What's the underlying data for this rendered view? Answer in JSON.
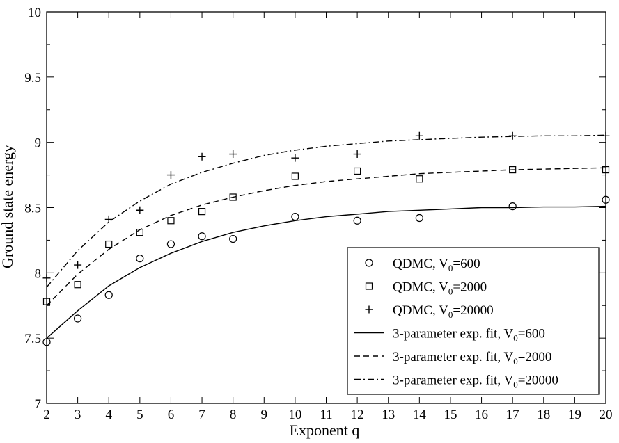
{
  "chart_data": {
    "type": "scatter",
    "title": "",
    "xlabel": "Exponent q",
    "ylabel": "Ground state energy",
    "xlim": [
      2,
      20
    ],
    "ylim": [
      7,
      10
    ],
    "xticks": [
      2,
      3,
      4,
      5,
      6,
      7,
      8,
      9,
      10,
      11,
      12,
      13,
      14,
      15,
      16,
      17,
      18,
      19,
      20
    ],
    "yticks": [
      7,
      7.5,
      8,
      8.5,
      9,
      9.5,
      10
    ],
    "ytick_labels": [
      "7",
      "7.5",
      "8",
      "8.5",
      "9",
      "9.5",
      "10"
    ],
    "grid": false,
    "legend_position": "bottom-right",
    "series": [
      {
        "name": "QDMC, V0=600",
        "label_main": "QDMC, V",
        "label_sub": "0",
        "label_tail": "=600",
        "kind": "points",
        "marker": "circle",
        "x": [
          2,
          3,
          4,
          5,
          6,
          7,
          8,
          10,
          12,
          14,
          17,
          20
        ],
        "y": [
          7.47,
          7.65,
          7.83,
          8.11,
          8.22,
          8.28,
          8.26,
          8.43,
          8.4,
          8.42,
          8.51,
          8.56
        ]
      },
      {
        "name": "QDMC, V0=2000",
        "label_main": "QDMC, V",
        "label_sub": "0",
        "label_tail": "=2000",
        "kind": "points",
        "marker": "square",
        "x": [
          2,
          3,
          4,
          5,
          6,
          7,
          8,
          10,
          12,
          14,
          17,
          20
        ],
        "y": [
          7.78,
          7.91,
          8.22,
          8.31,
          8.4,
          8.47,
          8.58,
          8.74,
          8.78,
          8.72,
          8.79,
          8.79
        ]
      },
      {
        "name": "QDMC, V0=20000",
        "label_main": "QDMC, V",
        "label_sub": "0",
        "label_tail": "=20000",
        "kind": "points",
        "marker": "plus",
        "x": [
          2,
          3,
          4,
          5,
          6,
          7,
          8,
          10,
          12,
          14,
          17,
          20
        ],
        "y": [
          7.96,
          8.06,
          8.41,
          8.48,
          8.75,
          8.89,
          8.91,
          8.88,
          8.91,
          9.05,
          9.05,
          9.05
        ]
      },
      {
        "name": "3-parameter exp. fit, V0=600",
        "label_main": "3-parameter exp. fit, V",
        "label_sub": "0",
        "label_tail": "=600",
        "kind": "line",
        "dash": "solid",
        "x": [
          2,
          3,
          4,
          5,
          6,
          7,
          8,
          9,
          10,
          11,
          12,
          13,
          14,
          15,
          16,
          17,
          18,
          19,
          20
        ],
        "y": [
          7.5,
          7.71,
          7.9,
          8.04,
          8.15,
          8.24,
          8.31,
          8.36,
          8.4,
          8.43,
          8.45,
          8.47,
          8.48,
          8.49,
          8.5,
          8.5,
          8.505,
          8.505,
          8.51
        ]
      },
      {
        "name": "3-parameter exp. fit, V0=2000",
        "label_main": "3-parameter exp. fit, V",
        "label_sub": "0",
        "label_tail": "=2000",
        "kind": "line",
        "dash": "dashed",
        "x": [
          2,
          3,
          4,
          5,
          6,
          7,
          8,
          9,
          10,
          11,
          12,
          13,
          14,
          15,
          16,
          17,
          18,
          19,
          20
        ],
        "y": [
          7.75,
          7.99,
          8.18,
          8.33,
          8.44,
          8.52,
          8.58,
          8.63,
          8.67,
          8.7,
          8.72,
          8.74,
          8.76,
          8.77,
          8.78,
          8.79,
          8.795,
          8.8,
          8.805
        ]
      },
      {
        "name": "3-parameter exp. fit, V0=20000",
        "label_main": "3-parameter exp. fit, V",
        "label_sub": "0",
        "label_tail": "=20000",
        "kind": "line",
        "dash": "dashdot",
        "x": [
          2,
          3,
          4,
          5,
          6,
          7,
          8,
          9,
          10,
          11,
          12,
          13,
          14,
          15,
          16,
          17,
          18,
          19,
          20
        ],
        "y": [
          7.89,
          8.17,
          8.39,
          8.55,
          8.68,
          8.77,
          8.84,
          8.9,
          8.94,
          8.97,
          8.99,
          9.01,
          9.02,
          9.03,
          9.04,
          9.045,
          9.05,
          9.05,
          9.055
        ]
      }
    ]
  }
}
